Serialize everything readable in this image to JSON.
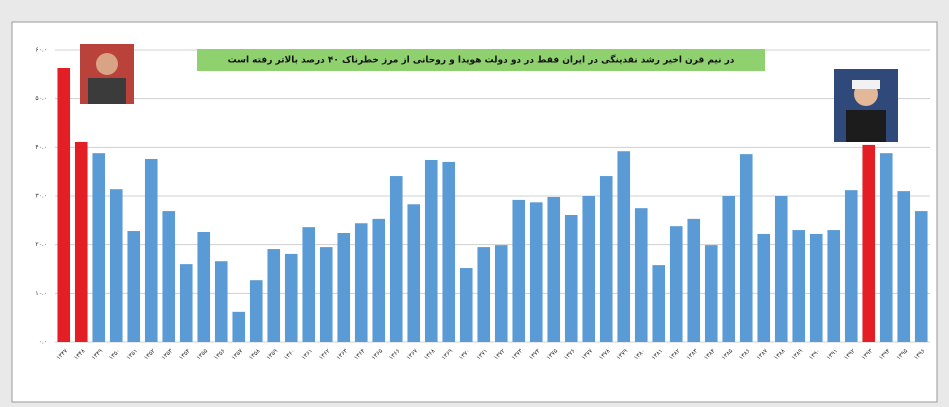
{
  "chart_data": {
    "type": "bar",
    "title": "در نیم قرن اخیر رشد نقدینگی در ایران فقط در دو دولت هویدا و روحانی از مرز خطرناک ۴۰ درصد بالاتر رفته است",
    "categories": [
      "۱۳۴۷",
      "۱۳۴۸",
      "۱۳۴۹",
      "۱۳۵۰",
      "۱۳۵۱",
      "۱۳۵۲",
      "۱۳۵۳",
      "۱۳۵۴",
      "۱۳۵۵",
      "۱۳۵۶",
      "۱۳۵۷",
      "۱۳۵۸",
      "۱۳۵۹",
      "۱۳۶۰",
      "۱۳۶۱",
      "۱۳۶۲",
      "۱۳۶۳",
      "۱۳۶۴",
      "۱۳۶۵",
      "۱۳۶۶",
      "۱۳۶۷",
      "۱۳۶۸",
      "۱۳۶۹",
      "۱۳۷۰",
      "۱۳۷۱",
      "۱۳۷۲",
      "۱۳۷۳",
      "۱۳۷۴",
      "۱۳۷۵",
      "۱۳۷۶",
      "۱۳۷۷",
      "۱۳۷۸",
      "۱۳۷۹",
      "۱۳۸۰",
      "۱۳۸۱",
      "۱۳۸۲",
      "۱۳۸۳",
      "۱۳۸۴",
      "۱۳۸۵",
      "۱۳۸۶",
      "۱۳۸۷",
      "۱۳۸۸",
      "۱۳۸۹",
      "۱۳۹۰",
      "۱۳۹۱",
      "۱۳۹۲",
      "۱۳۹۳",
      "۱۳۹۴",
      "۱۳۹۵",
      "۱۳۹۶"
    ],
    "values": [
      56.3,
      41.1,
      38.8,
      31.4,
      22.8,
      37.6,
      26.9,
      16.0,
      22.6,
      16.6,
      6.2,
      12.7,
      19.1,
      18.1,
      23.6,
      19.5,
      22.4,
      24.4,
      25.3,
      34.1,
      28.3,
      37.4,
      37.0,
      15.2,
      19.5,
      19.9,
      29.2,
      28.7,
      29.8,
      26.1,
      30.0,
      34.1,
      39.2,
      27.5,
      15.8,
      23.8,
      25.3,
      19.9,
      30.0,
      38.6,
      22.2,
      30.0,
      23.0,
      22.2,
      23.0,
      31.2,
      40.5,
      38.8,
      31.0,
      26.9
    ],
    "colors": [
      "#e31e24",
      "#e31e24",
      "#5b9bd5",
      "#5b9bd5",
      "#5b9bd5",
      "#5b9bd5",
      "#5b9bd5",
      "#5b9bd5",
      "#5b9bd5",
      "#5b9bd5",
      "#5b9bd5",
      "#5b9bd5",
      "#5b9bd5",
      "#5b9bd5",
      "#5b9bd5",
      "#5b9bd5",
      "#5b9bd5",
      "#5b9bd5",
      "#5b9bd5",
      "#5b9bd5",
      "#5b9bd5",
      "#5b9bd5",
      "#5b9bd5",
      "#5b9bd5",
      "#5b9bd5",
      "#5b9bd5",
      "#5b9bd5",
      "#5b9bd5",
      "#5b9bd5",
      "#5b9bd5",
      "#5b9bd5",
      "#5b9bd5",
      "#5b9bd5",
      "#5b9bd5",
      "#5b9bd5",
      "#5b9bd5",
      "#5b9bd5",
      "#5b9bd5",
      "#5b9bd5",
      "#5b9bd5",
      "#5b9bd5",
      "#5b9bd5",
      "#5b9bd5",
      "#5b9bd5",
      "#5b9bd5",
      "#5b9bd5",
      "#e31e24",
      "#5b9bd5",
      "#5b9bd5",
      "#5b9bd5"
    ],
    "ylim": [
      0,
      60
    ],
    "yticks": [
      {
        "value": 0,
        "label": "۰.۰"
      },
      {
        "value": 10,
        "label": "۱۰.۰"
      },
      {
        "value": 20,
        "label": "۲۰.۰"
      },
      {
        "value": 30,
        "label": "۳۰.۰"
      },
      {
        "value": 40,
        "label": "۴۰.۰"
      },
      {
        "value": 50,
        "label": "۵۰.۰"
      },
      {
        "value": 60,
        "label": "۶۰.۰"
      }
    ],
    "grid": true
  }
}
